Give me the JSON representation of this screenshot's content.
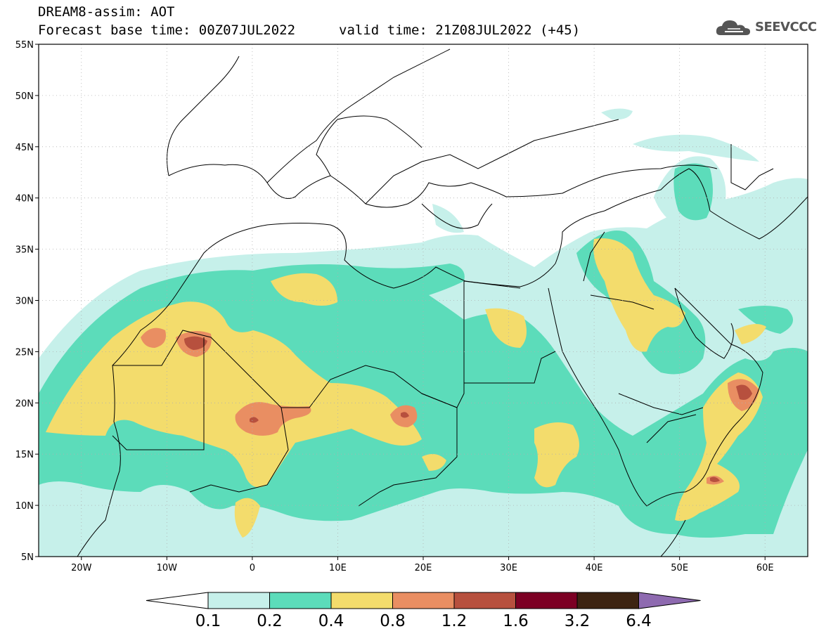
{
  "header": {
    "title": "DREAM8-assim: AOT",
    "base_time": "Forecast base time: 00Z07JUL2022",
    "valid_time": "valid time: 21Z08JUL2022 (+45)",
    "logo_text": "SEEVCCC"
  },
  "map": {
    "lat_ticks": [
      "55N",
      "50N",
      "45N",
      "40N",
      "35N",
      "30N",
      "25N",
      "20N",
      "15N",
      "10N",
      "5N"
    ],
    "lon_ticks": [
      "20W",
      "10W",
      "0",
      "10E",
      "20E",
      "30E",
      "40E",
      "50E",
      "60E"
    ],
    "lat_range": [
      5,
      55
    ],
    "lon_range": [
      -25,
      65
    ],
    "grid": "dotted",
    "background": "#ffffff"
  },
  "colorbar": {
    "labels": [
      "0.1",
      "0.2",
      "0.4",
      "0.8",
      "1.2",
      "1.6",
      "3.2",
      "6.4"
    ],
    "colors": [
      "#c6f0ea",
      "#5cdcba",
      "#f3dc6c",
      "#e98e62",
      "#b7503e",
      "#7c0024",
      "#3d2412",
      "#8e6ab0"
    ]
  },
  "colors": {
    "c01": "#c6f0ea",
    "c02": "#5cdcba",
    "c04": "#f3dc6c",
    "c08": "#e98e62",
    "c12": "#b7503e"
  }
}
